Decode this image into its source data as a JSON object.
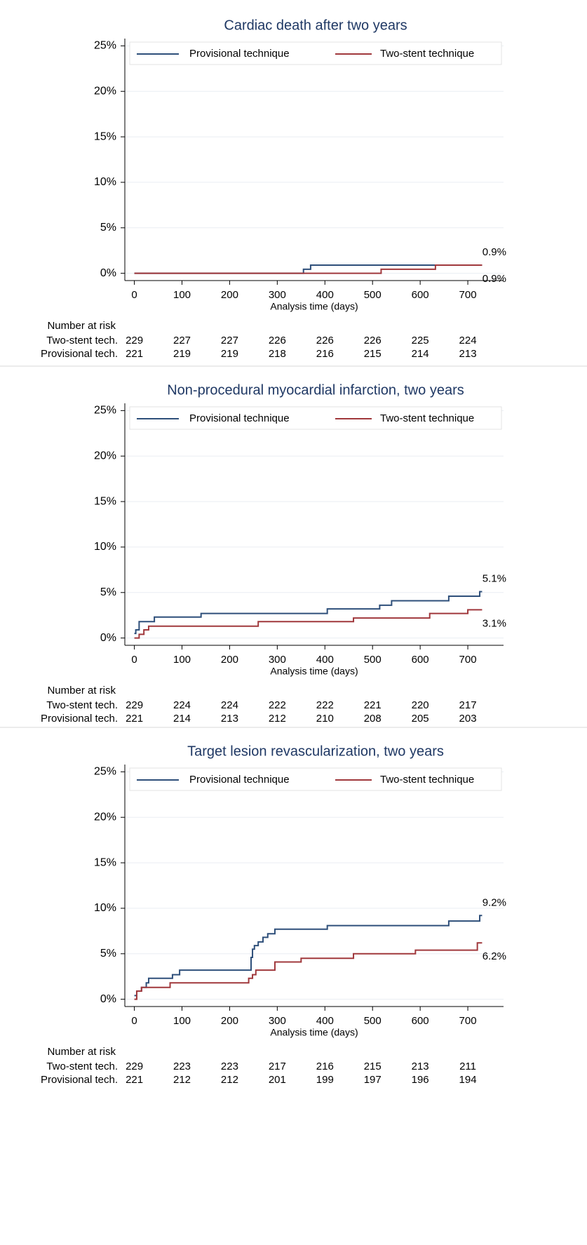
{
  "chart_data": [
    {
      "type": "step",
      "title": "Cardiac death after two years",
      "xlabel": "Analysis time (days)",
      "xlim": [
        -20,
        775
      ],
      "ylim": [
        -0.8,
        25.8
      ],
      "xticks": [
        0,
        100,
        200,
        300,
        400,
        500,
        600,
        700
      ],
      "yticks": [
        {
          "value": 0,
          "label": "0%"
        },
        {
          "value": 5,
          "label": "5%"
        },
        {
          "value": 10,
          "label": "10%"
        },
        {
          "value": 15,
          "label": "15%"
        },
        {
          "value": 20,
          "label": "20%"
        },
        {
          "value": 25,
          "label": "25%"
        }
      ],
      "grid": true,
      "legend": "top",
      "series": [
        {
          "name": "Provisional technique",
          "color": "#2e4f7a",
          "x": [
            0,
            355,
            370,
            730
          ],
          "values": [
            0,
            0.44,
            0.9,
            0.9
          ],
          "value_labels": [
            null,
            null,
            null,
            "0.9%"
          ]
        },
        {
          "name": "Two-stent technique",
          "color": "#a0383c",
          "x": [
            0,
            518,
            632,
            730
          ],
          "values": [
            0,
            0.44,
            0.9,
            0.9
          ],
          "value_labels": [
            null,
            null,
            null,
            "0.9%"
          ]
        }
      ],
      "risk_table": {
        "title": "Number at risk",
        "rows": [
          {
            "name": "Two-stent tech.",
            "values": [
              229,
              227,
              227,
              226,
              226,
              226,
              225,
              224
            ]
          },
          {
            "name": "Provisional tech.",
            "values": [
              221,
              219,
              219,
              218,
              216,
              215,
              214,
              213
            ]
          }
        ]
      }
    },
    {
      "type": "step",
      "title": "Non-procedural myocardial infarction, two years",
      "xlabel": "Analysis time (days)",
      "xlim": [
        -20,
        775
      ],
      "ylim": [
        -0.8,
        25.8
      ],
      "xticks": [
        0,
        100,
        200,
        300,
        400,
        500,
        600,
        700
      ],
      "yticks": [
        {
          "value": 0,
          "label": "0%"
        },
        {
          "value": 5,
          "label": "5%"
        },
        {
          "value": 10,
          "label": "10%"
        },
        {
          "value": 15,
          "label": "15%"
        },
        {
          "value": 20,
          "label": "20%"
        },
        {
          "value": 25,
          "label": "25%"
        }
      ],
      "grid": true,
      "legend": "top",
      "series": [
        {
          "name": "Provisional technique",
          "color": "#2e4f7a",
          "x": [
            0,
            3,
            10,
            42,
            140,
            405,
            515,
            540,
            660,
            725,
            730
          ],
          "values": [
            0.5,
            0.9,
            1.8,
            2.3,
            2.7,
            3.2,
            3.6,
            4.1,
            4.6,
            5.1,
            5.1
          ],
          "value_labels": [
            null,
            null,
            null,
            null,
            null,
            null,
            null,
            null,
            null,
            null,
            "5.1%"
          ]
        },
        {
          "name": "Two-stent technique",
          "color": "#a0383c",
          "x": [
            0,
            10,
            20,
            30,
            260,
            460,
            620,
            700,
            730
          ],
          "values": [
            0,
            0.4,
            0.9,
            1.3,
            1.8,
            2.2,
            2.7,
            3.1,
            3.1
          ],
          "value_labels": [
            null,
            null,
            null,
            null,
            null,
            null,
            null,
            null,
            "3.1%"
          ]
        }
      ],
      "risk_table": {
        "title": "Number at risk",
        "rows": [
          {
            "name": "Two-stent tech.",
            "values": [
              229,
              224,
              224,
              222,
              222,
              221,
              220,
              217
            ]
          },
          {
            "name": "Provisional tech.",
            "values": [
              221,
              214,
              213,
              212,
              210,
              208,
              205,
              203
            ]
          }
        ]
      }
    },
    {
      "type": "step",
      "title": "Target lesion revascularization, two years",
      "xlabel": "Analysis time (days)",
      "xlim": [
        -20,
        775
      ],
      "ylim": [
        -0.8,
        25.8
      ],
      "xticks": [
        0,
        100,
        200,
        300,
        400,
        500,
        600,
        700
      ],
      "yticks": [
        {
          "value": 0,
          "label": "0%"
        },
        {
          "value": 5,
          "label": "5%"
        },
        {
          "value": 10,
          "label": "10%"
        },
        {
          "value": 15,
          "label": "15%"
        },
        {
          "value": 20,
          "label": "20%"
        },
        {
          "value": 25,
          "label": "25%"
        }
      ],
      "grid": true,
      "legend": "top",
      "series": [
        {
          "name": "Provisional technique",
          "color": "#2e4f7a",
          "x": [
            0,
            5,
            15,
            25,
            30,
            80,
            95,
            245,
            248,
            252,
            260,
            270,
            280,
            295,
            405,
            660,
            725,
            730
          ],
          "values": [
            0.4,
            0.9,
            1.3,
            1.8,
            2.3,
            2.7,
            3.2,
            4.6,
            5.5,
            5.9,
            6.3,
            6.8,
            7.2,
            7.7,
            8.1,
            8.6,
            9.2,
            9.2
          ],
          "value_labels": [
            null,
            null,
            null,
            null,
            null,
            null,
            null,
            null,
            null,
            null,
            null,
            null,
            null,
            null,
            null,
            null,
            null,
            "9.2%"
          ]
        },
        {
          "name": "Two-stent technique",
          "color": "#a0383c",
          "x": [
            0,
            5,
            15,
            75,
            240,
            248,
            255,
            295,
            350,
            460,
            590,
            720,
            730
          ],
          "values": [
            0,
            0.9,
            1.3,
            1.8,
            2.3,
            2.7,
            3.2,
            4.1,
            4.5,
            5.0,
            5.4,
            6.2,
            6.2
          ],
          "value_labels": [
            null,
            null,
            null,
            null,
            null,
            null,
            null,
            null,
            null,
            null,
            null,
            null,
            "6.2%"
          ]
        }
      ],
      "risk_table": {
        "title": "Number at risk",
        "rows": [
          {
            "name": "Two-stent tech.",
            "values": [
              229,
              223,
              223,
              217,
              216,
              215,
              213,
              211
            ]
          },
          {
            "name": "Provisional tech.",
            "values": [
              221,
              212,
              212,
              201,
              199,
              197,
              196,
              194
            ]
          }
        ]
      }
    }
  ]
}
